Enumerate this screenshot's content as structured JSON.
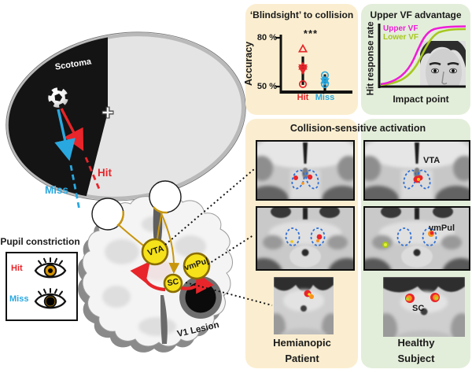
{
  "figure": {
    "visual_field": {
      "scotoma_label": "Scotoma",
      "hit_label": "Hit",
      "miss_label": "Miss"
    },
    "pupil_box": {
      "title": "Pupil constriction",
      "hit_label": "Hit",
      "miss_label": "Miss"
    },
    "brain": {
      "vta_label": "VTA",
      "vmpul_label": "vmPul",
      "sc_label": "SC",
      "lesion_label": "V1 Lesion"
    },
    "activation": {
      "title": "Collision-sensitive activation",
      "rows": [
        {
          "region": "ventral tegmental area",
          "label": "VTA"
        },
        {
          "region": "ventromedial pulvinar",
          "label": "vmPul"
        },
        {
          "region": "superior colliculus",
          "label": "SC"
        }
      ],
      "columns": [
        {
          "caption": "Hemianopic Patient"
        },
        {
          "caption": "Healthy Subject"
        }
      ]
    }
  },
  "colors": {
    "hit": "#E8252A",
    "miss": "#29A8E0",
    "cream_bg": "#FBEED0",
    "green_bg": "#E3EEDA",
    "node_yellow": "#F5E21B",
    "pathway_gold": "#C8960C",
    "upper_vf": "#EE1ED8",
    "lower_vf": "#A6C71D",
    "roi_outline_blue": "#2F6FD6"
  },
  "chart_data": [
    {
      "type": "scatter",
      "title": "‘Blindsight’ to collision",
      "ylabel": "Accuracy",
      "yticks": [
        "80 %",
        "50 %"
      ],
      "ylim": [
        47,
        83
      ],
      "categories": [
        "Hit",
        "Miss"
      ],
      "significance": "***",
      "series": [
        {
          "name": "Hit",
          "color": "#E8252A",
          "points": [
            {
              "marker": "triangle-up",
              "value": 73
            },
            {
              "marker": "star",
              "value": 62
            },
            {
              "marker": "triangle-down",
              "value": 60.5
            },
            {
              "marker": "circle",
              "value": 51.5
            }
          ],
          "mean_range": [
            51,
            68.5
          ]
        },
        {
          "name": "Miss",
          "color": "#29A8E0",
          "points": [
            {
              "marker": "circle",
              "value": 57
            },
            {
              "marker": "star",
              "value": 53.5
            },
            {
              "marker": "circle",
              "value": 51.5
            }
          ],
          "mean_range": [
            47,
            57.5
          ]
        }
      ]
    },
    {
      "type": "line",
      "title": "Upper VF advantage",
      "xlabel": "Impact point",
      "ylabel": "Hit response rate",
      "legend": [
        {
          "name": "Upper VF",
          "color": "#EE1ED8"
        },
        {
          "name": "Lower VF",
          "color": "#A6C71D"
        }
      ],
      "description": "Sigmoid psychometric curves of hit response rate vs impact point; Upper VF curve shifted left/above Lower VF curve"
    }
  ]
}
